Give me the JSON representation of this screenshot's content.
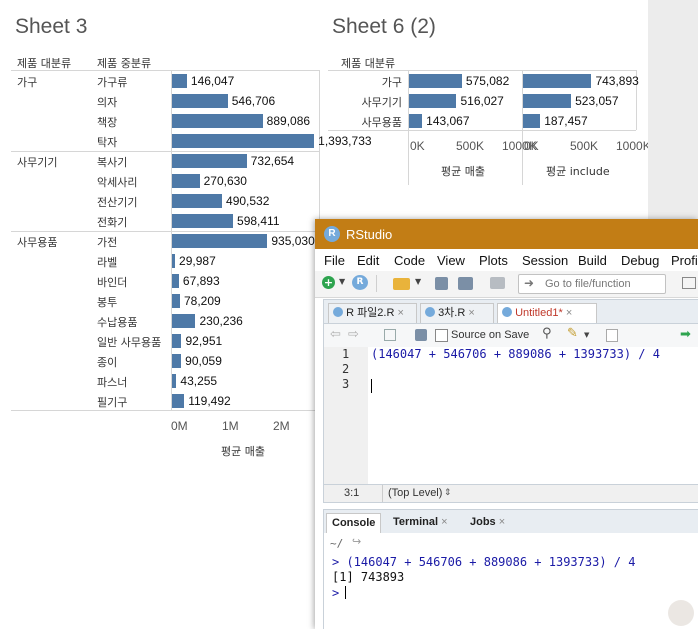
{
  "sheet3": {
    "title": "Sheet 3",
    "header_cat": "제품 대분류",
    "header_sub": "제품 중분류",
    "axis_ticks": [
      "0M",
      "1M",
      "2M"
    ],
    "axis_title": "평균 매출",
    "groups": [
      {
        "name": "가구",
        "rows": [
          {
            "label": "가구류",
            "value": 146047,
            "text": "146,047"
          },
          {
            "label": "의자",
            "value": 546706,
            "text": "546,706"
          },
          {
            "label": "책장",
            "value": 889086,
            "text": "889,086"
          },
          {
            "label": "탁자",
            "value": 1393733,
            "text": "1,393,733"
          }
        ]
      },
      {
        "name": "사무기기",
        "rows": [
          {
            "label": "복사기",
            "value": 732654,
            "text": "732,654"
          },
          {
            "label": "악세사리",
            "value": 270630,
            "text": "270,630"
          },
          {
            "label": "전산기기",
            "value": 490532,
            "text": "490,532"
          },
          {
            "label": "전화기",
            "value": 598411,
            "text": "598,411"
          }
        ]
      },
      {
        "name": "사무용품",
        "rows": [
          {
            "label": "가전",
            "value": 935030,
            "text": "935,030"
          },
          {
            "label": "라벨",
            "value": 29987,
            "text": "29,987"
          },
          {
            "label": "바인더",
            "value": 67893,
            "text": "67,893"
          },
          {
            "label": "봉투",
            "value": 78209,
            "text": "78,209"
          },
          {
            "label": "수납용품",
            "value": 230236,
            "text": "230,236"
          },
          {
            "label": "일반 사무용품",
            "value": 92951,
            "text": "92,951"
          },
          {
            "label": "종이",
            "value": 90059,
            "text": "90,059"
          },
          {
            "label": "파스너",
            "value": 43255,
            "text": "43,255"
          },
          {
            "label": "필기구",
            "value": 119492,
            "text": "119,492"
          }
        ]
      }
    ]
  },
  "sheet6": {
    "title": "Sheet 6 (2)",
    "header_cat": "제품 대분류",
    "col1_title": "평균 매출",
    "col2_title": "평균 include",
    "axis_ticks": [
      "0K",
      "500K",
      "1000K"
    ],
    "rows": [
      {
        "label": "가구",
        "v1": 575082,
        "t1": "575,082",
        "v2": 743893,
        "t2": "743,893"
      },
      {
        "label": "사무기기",
        "v1": 516027,
        "t1": "516,027",
        "v2": 523057,
        "t2": "523,057"
      },
      {
        "label": "사무용품",
        "v1": 143067,
        "t1": "143,067",
        "v2": 187457,
        "t2": "187,457"
      }
    ]
  },
  "rstudio": {
    "title": "RStudio",
    "menu": [
      "File",
      "Edit",
      "Code",
      "View",
      "Plots",
      "Session",
      "Build",
      "Debug",
      "Profi"
    ],
    "goto_placeholder": "Go to file/function",
    "tabs": [
      {
        "label": "R 파일2.R"
      },
      {
        "label": "3차.R"
      },
      {
        "label": "Untitled1*"
      }
    ],
    "source_on_save": "Source on Save",
    "editor_lines": [
      {
        "num": "1",
        "code": "(146047 + 546706 + 889086 + 1393733) / 4"
      },
      {
        "num": "2",
        "code": ""
      },
      {
        "num": "3",
        "code": ""
      }
    ],
    "cursor_pos": "3:1",
    "scope": "(Top Level)",
    "console_tabs": [
      "Console",
      "Terminal",
      "Jobs"
    ],
    "console_path": "~/",
    "console_lines": [
      {
        "prompt": ">",
        "text": " (146047 + 546706 + 889086 + 1393733) / 4"
      },
      {
        "prompt": "",
        "text": "[1] 743893"
      },
      {
        "prompt": ">",
        "text": ""
      }
    ]
  },
  "colors": {
    "bar": "#4e79a7",
    "rstudio_titlebar": "#c27d15",
    "code_blue": "#1a1aa6",
    "active_tab_red": "#c0392b"
  }
}
